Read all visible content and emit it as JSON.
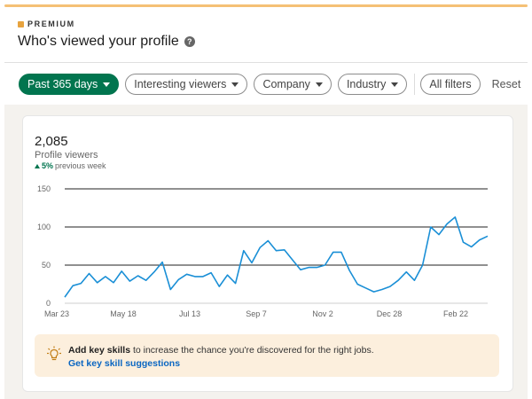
{
  "header": {
    "premium_label": "PREMIUM",
    "title": "Who's viewed your profile",
    "help_icon": "question-circle-icon"
  },
  "filters": {
    "time_range": "Past 365 days",
    "interesting_viewers": "Interesting viewers",
    "company": "Company",
    "industry": "Industry",
    "all_filters": "All filters",
    "reset": "Reset"
  },
  "stats": {
    "value": "2,085",
    "label": "Profile viewers",
    "change_pct": "5%",
    "change_period": "previous week"
  },
  "chart_data": {
    "type": "line",
    "ylim": [
      0,
      150
    ],
    "y_ticks": [
      "0",
      "50",
      "100",
      "150"
    ],
    "x_ticks": [
      "Mar 23",
      "May 18",
      "Jul 13",
      "Sep 7",
      "Nov 2",
      "Dec 28",
      "Feb 22"
    ],
    "grid": true,
    "series": [
      {
        "color": "#1a8fd6",
        "values": [
          8,
          23,
          26,
          39,
          27,
          35,
          27,
          42,
          29,
          36,
          30,
          41,
          54,
          18,
          31,
          38,
          35,
          35,
          40,
          22,
          37,
          26,
          69,
          53,
          73,
          82,
          69,
          70,
          57,
          44,
          47,
          47,
          50,
          67,
          67,
          43,
          25,
          20,
          15,
          18,
          22,
          30,
          41,
          30,
          50,
          100,
          90,
          104,
          113,
          80,
          74,
          83,
          88
        ]
      }
    ]
  },
  "tip": {
    "bold": "Add key skills",
    "text": " to increase the chance you're discovered for the right jobs.",
    "link": "Get key skill suggestions",
    "icon": "lightbulb-icon"
  },
  "colors": {
    "accent_green": "#01754f",
    "line_blue": "#1a8fd6",
    "link_blue": "#0a66c2",
    "premium_gold": "#e7a33e"
  }
}
